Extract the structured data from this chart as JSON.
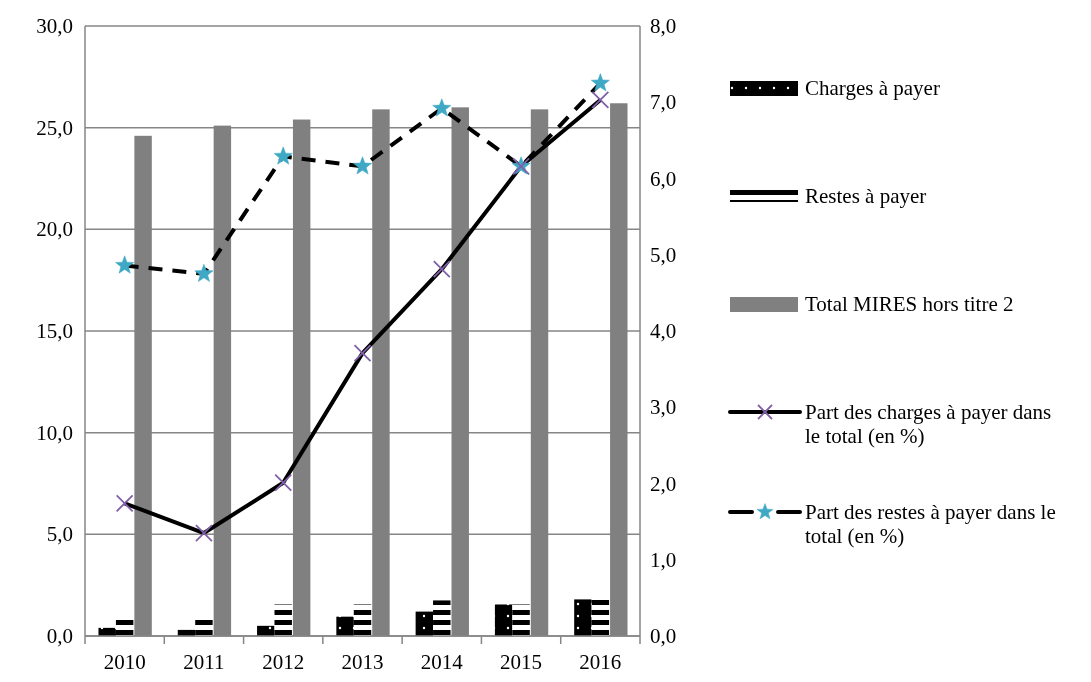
{
  "chart_data": {
    "type": "bar",
    "categories": [
      "2010",
      "2011",
      "2012",
      "2013",
      "2014",
      "2015",
      "2016"
    ],
    "series": [
      {
        "name": "Charges à payer",
        "color": "#000000",
        "values": [
          0.4,
          0.3,
          0.5,
          0.95,
          1.2,
          1.55,
          1.8
        ]
      },
      {
        "name": "Restes à payer",
        "color": "#000000",
        "values": [
          1.0,
          1.0,
          1.55,
          1.55,
          1.75,
          1.55,
          1.85
        ]
      },
      {
        "name": "Total MIRES hors titre 2",
        "color": "#808080",
        "values": [
          24.6,
          25.1,
          25.4,
          25.9,
          26.0,
          25.9,
          26.2
        ]
      },
      {
        "name": "Part des charges à payer dans le total (en %)",
        "type": "line",
        "axis": "y2",
        "color": "#000000",
        "marker": "cross",
        "line_style": "solid",
        "values": [
          1.74,
          1.35,
          2.01,
          3.71,
          4.81,
          6.16,
          7.03
        ]
      },
      {
        "name": "Part des restes à payer dans le total (en %)",
        "type": "line",
        "axis": "y2",
        "color": "#000000",
        "marker": "star",
        "line_style": "dashed",
        "values": [
          4.86,
          4.75,
          6.29,
          6.16,
          6.92,
          6.16,
          7.25
        ]
      }
    ],
    "ylim": [
      0,
      30
    ],
    "yticks": [
      {
        "value": 0,
        "label": "0,0"
      },
      {
        "value": 5,
        "label": "5,0"
      },
      {
        "value": 10,
        "label": "10,0"
      },
      {
        "value": 15,
        "label": "15,0"
      },
      {
        "value": 20,
        "label": "20,0"
      },
      {
        "value": 25,
        "label": "25,0"
      },
      {
        "value": 30,
        "label": "30,0"
      }
    ],
    "y2lim": [
      0,
      8
    ],
    "y2ticks": [
      {
        "value": 0,
        "label": "0,0"
      },
      {
        "value": 1,
        "label": "1,0"
      },
      {
        "value": 2,
        "label": "2,0"
      },
      {
        "value": 3,
        "label": "3,0"
      },
      {
        "value": 4,
        "label": "4,0"
      },
      {
        "value": 5,
        "label": "5,0"
      },
      {
        "value": 6,
        "label": "6,0"
      },
      {
        "value": 7,
        "label": "7,0"
      },
      {
        "value": 8,
        "label": "8,0"
      }
    ],
    "grid": "y",
    "legend": "right"
  }
}
